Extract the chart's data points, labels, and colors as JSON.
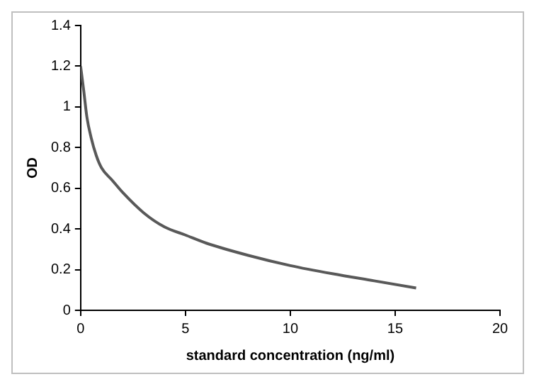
{
  "chart_data": {
    "type": "line",
    "xlabel": "standard concentration (ng/ml)",
    "ylabel": "OD",
    "x": [
      0,
      0.15,
      0.3,
      0.5,
      0.75,
      1,
      1.5,
      2,
      3,
      4,
      5,
      6,
      8,
      10,
      12,
      14,
      16
    ],
    "series": [
      {
        "color": "#595959",
        "values": [
          1.2,
          1.08,
          0.95,
          0.85,
          0.76,
          0.7,
          0.64,
          0.58,
          0.48,
          0.41,
          0.37,
          0.33,
          0.27,
          0.22,
          0.18,
          0.145,
          0.11
        ]
      }
    ],
    "xlim": [
      0,
      20
    ],
    "xticks": [
      0,
      5,
      10,
      15,
      20
    ],
    "ylim": [
      0,
      1.4
    ],
    "yticks": [
      0,
      0.2,
      0.4,
      0.6,
      0.8,
      1,
      1.2,
      1.4
    ],
    "grid": false,
    "legend": false,
    "marker": "none",
    "line_style": "solid"
  }
}
